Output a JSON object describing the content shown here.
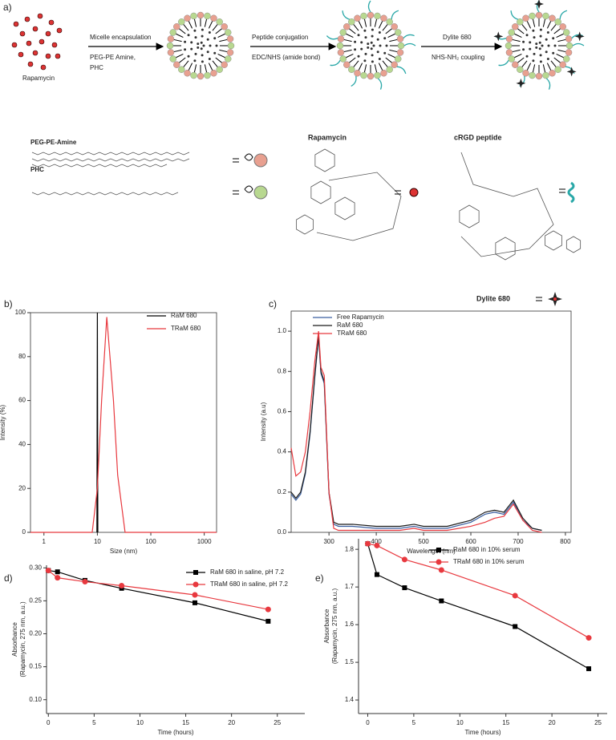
{
  "diagram": {
    "panel_label": "a)",
    "drug_label": "Rapamycin",
    "steps": [
      {
        "title": "Micelle encapsulation",
        "notes": [
          "PEG-PE Amine,",
          "PHC"
        ]
      },
      {
        "title": "Peptide conjugation",
        "notes": [
          "EDC/NHS (amide bond)"
        ]
      },
      {
        "title": "Dylite 680",
        "notes": [
          "NHS-NH₂ coupling"
        ]
      }
    ],
    "legend": [
      "PEG-PE-Amine",
      "PHC",
      "Rapamycin",
      "cRGD peptide",
      "Dylite 680"
    ]
  },
  "chart_data": [
    {
      "type": "line",
      "panel_label": "b)",
      "x_label": "Size (nm)",
      "y_label": [
        "Intensity (%)"
      ],
      "xscale": "log",
      "xlim": [
        0.56,
        1700
      ],
      "xticks": [
        1,
        10,
        100,
        1000
      ],
      "ylim": [
        0,
        100
      ],
      "yticks": [
        0,
        20,
        40,
        60,
        80,
        100
      ],
      "frame": true,
      "series": [
        {
          "name": "RaM 680",
          "color": "#000000",
          "x": [
            9.8,
            10,
            10.2
          ],
          "values": [
            0,
            100,
            0
          ]
        },
        {
          "name": "TRaM 680",
          "color": "#e8393f",
          "x": [
            0.56,
            8,
            10,
            12,
            15,
            20,
            24,
            33,
            1700
          ],
          "values": [
            0,
            0,
            20,
            60,
            98,
            60,
            26,
            0,
            0
          ]
        }
      ]
    },
    {
      "type": "line",
      "panel_label": "c)",
      "x_label": "Wavelength (nm)",
      "y_label": [
        "Intensity (a.u)"
      ],
      "xlim": [
        220,
        812
      ],
      "xticks": [
        300,
        400,
        500,
        600,
        700,
        800
      ],
      "ylim": [
        0,
        1.1
      ],
      "yticks": [
        {
          "value": 0,
          "label": "0.0"
        },
        0.2,
        0.4,
        0.6,
        0.8,
        {
          "value": 1,
          "label": "1.0"
        }
      ],
      "frame": true,
      "x": [
        220,
        230,
        240,
        250,
        260,
        270,
        278,
        283,
        290,
        300,
        310,
        320,
        350,
        400,
        450,
        480,
        500,
        550,
        600,
        630,
        650,
        670,
        690,
        710,
        730,
        750
      ],
      "series": [
        {
          "name": "Free Rapamycin",
          "color": "#3a5fa0",
          "values": [
            0.19,
            0.16,
            0.19,
            0.29,
            0.49,
            0.77,
            0.97,
            0.79,
            0.74,
            0.19,
            0.04,
            0.03,
            0.03,
            0.02,
            0.02,
            0.03,
            0.02,
            0.02,
            0.05,
            0.09,
            0.1,
            0.09,
            0.15,
            0.06,
            0.02,
            0.01
          ]
        },
        {
          "name": "RaM 680",
          "color": "#1a1a1a",
          "values": [
            0.2,
            0.17,
            0.2,
            0.3,
            0.5,
            0.78,
            0.98,
            0.8,
            0.75,
            0.2,
            0.05,
            0.04,
            0.04,
            0.03,
            0.03,
            0.04,
            0.03,
            0.03,
            0.06,
            0.1,
            0.11,
            0.1,
            0.16,
            0.07,
            0.02,
            0.01
          ]
        },
        {
          "name": "TRaM 680",
          "color": "#e8393f",
          "values": [
            0.42,
            0.28,
            0.3,
            0.4,
            0.6,
            0.85,
            1.0,
            0.82,
            0.78,
            0.2,
            0.02,
            0.01,
            0.01,
            0.01,
            0.01,
            0.02,
            0.01,
            0.01,
            0.03,
            0.05,
            0.07,
            0.08,
            0.14,
            0.06,
            0.01,
            0.0
          ]
        }
      ]
    },
    {
      "type": "line",
      "panel_label": "d)",
      "x_label": "Time (hours)",
      "y_label": [
        "Absorbance",
        "(Rapamycin, 275 nm, a.u.)"
      ],
      "xlim": [
        -0.2,
        28
      ],
      "xticks": [
        0,
        5,
        10,
        15,
        20,
        25
      ],
      "ylim": [
        0.079,
        0.304
      ],
      "yticks": [
        {
          "value": 0.1,
          "label": "0.10"
        },
        {
          "value": 0.15,
          "label": "0.15"
        },
        {
          "value": 0.2,
          "label": "0.20"
        },
        {
          "value": 0.25,
          "label": "0.25"
        },
        {
          "value": 0.3,
          "label": "0.30"
        }
      ],
      "frame": false,
      "x": [
        0,
        1,
        4,
        8,
        16,
        24
      ],
      "series": [
        {
          "name": "RaM 680 in saline, pH 7.2",
          "color": "#000000",
          "marker": "square",
          "values": [
            0.296,
            0.294,
            0.281,
            0.269,
            0.247,
            0.219
          ]
        },
        {
          "name": "TRaM 680 in saline, pH 7.2",
          "color": "#e8393f",
          "marker": "circle",
          "values": [
            0.296,
            0.285,
            0.279,
            0.273,
            0.259,
            0.237
          ]
        }
      ]
    },
    {
      "type": "line",
      "panel_label": "e)",
      "x_label": "Time (hours)",
      "y_label": [
        "Absorbance",
        "(Rapamycin, 275 nm, a.u.)"
      ],
      "xlim": [
        -1,
        26
      ],
      "xticks": [
        0,
        5,
        10,
        15,
        20,
        25
      ],
      "ylim": [
        1.364,
        1.828
      ],
      "yticks": [
        1.4,
        1.5,
        1.6,
        1.7,
        1.8
      ],
      "frame": false,
      "x": [
        0,
        1,
        4,
        8,
        16,
        24
      ],
      "series": [
        {
          "name": "RaM 680 in 10% serum",
          "color": "#000000",
          "marker": "square",
          "values": [
            1.815,
            1.733,
            1.698,
            1.663,
            1.595,
            1.483
          ]
        },
        {
          "name": "TRaM 680 in 10% serum",
          "color": "#e8393f",
          "marker": "circle",
          "values": [
            1.815,
            1.81,
            1.773,
            1.745,
            1.677,
            1.565
          ]
        }
      ]
    }
  ]
}
